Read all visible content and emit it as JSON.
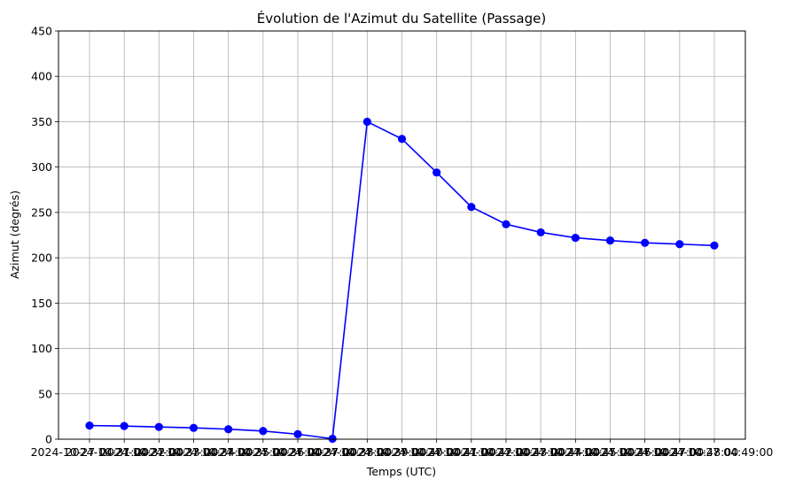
{
  "chart_data": {
    "type": "line",
    "title": "Évolution de l'Azimut du Satellite (Passage)",
    "xlabel": "Temps (UTC)",
    "ylabel": "Azimut (degrés)",
    "ylim": [
      0,
      450
    ],
    "yticks": [
      0,
      50,
      100,
      150,
      200,
      250,
      300,
      350,
      400,
      450
    ],
    "grid": true,
    "series_color": "#0000ff",
    "x": [
      "2024-10-27 04:31:00",
      "2024-10-27 04:32:00",
      "2024-10-27 04:33:00",
      "2024-10-27 04:34:00",
      "2024-10-27 04:35:00",
      "2024-10-27 04:36:00",
      "2024-10-27 04:37:00",
      "2024-10-27 04:38:00",
      "2024-10-27 04:39:00",
      "2024-10-27 04:40:00",
      "2024-10-27 04:41:00",
      "2024-10-27 04:42:00",
      "2024-10-27 04:43:00",
      "2024-10-27 04:44:00",
      "2024-10-27 04:45:00",
      "2024-10-27 04:46:00",
      "2024-10-27 04:47:00",
      "2024-10-27 04:48:00",
      "2024-10-27 04:49:00"
    ],
    "series": [
      {
        "values": [
          15,
          14.5,
          13.5,
          12.5,
          11,
          9,
          5.5,
          0.5,
          350,
          331,
          294,
          256,
          237,
          228,
          222,
          219,
          216.5,
          215,
          213.5
        ]
      }
    ]
  }
}
